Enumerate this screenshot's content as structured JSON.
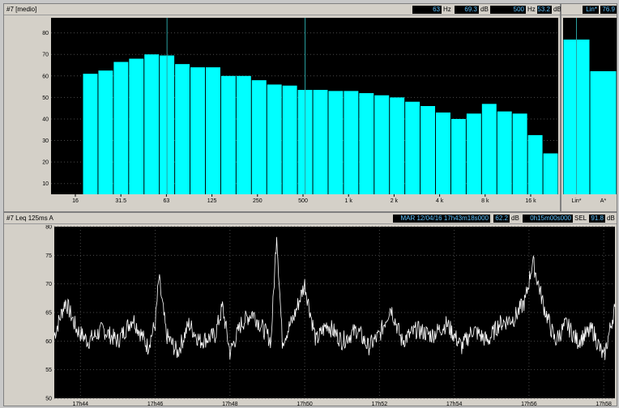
{
  "spectrum_panel": {
    "title": "#7 [medio]",
    "readouts": [
      {
        "value": "63",
        "unit": "Hz"
      },
      {
        "value": "69.3",
        "unit": "dB"
      },
      {
        "value": "500",
        "unit": "Hz"
      },
      {
        "value": "53.2",
        "unit": "dB"
      }
    ]
  },
  "global_panel": {
    "readout_label": "Lin*",
    "readout_value": "76.9"
  },
  "time_panel": {
    "title": "#7  Leq 125ms  A",
    "readouts": {
      "datetime": "MAR 12/04/16 17h43m18s000",
      "level": "62.2",
      "level_unit": "dB",
      "duration": "0h15m00s000",
      "sel_label": "SEL",
      "sel_value": "91.8",
      "sel_unit": "dB"
    }
  },
  "colors": {
    "bars": "#00ffff",
    "plot_bg": "#000000",
    "grid": "#4a4a4a",
    "cursor": "#2aa0a0",
    "trace": "#ffffff"
  },
  "chart_data": [
    {
      "type": "bar",
      "title": "",
      "xlabel": "",
      "ylabel": "",
      "ylim": [
        5,
        87
      ],
      "yticks": [
        10,
        20,
        30,
        40,
        50,
        60,
        70,
        80
      ],
      "xtick_labels": [
        "16",
        "31.5",
        "63",
        "125",
        "250",
        "500",
        "1 k",
        "2 k",
        "4 k",
        "8 k",
        "16 k"
      ],
      "bands": [
        "20",
        "25",
        "31.5",
        "40",
        "50",
        "63",
        "80",
        "100",
        "125",
        "160",
        "200",
        "250",
        "315",
        "400",
        "500",
        "630",
        "800",
        "1k",
        "1.25k",
        "1.6k",
        "2k",
        "2.5k",
        "3.15k",
        "4k",
        "5k",
        "6.3k",
        "8k",
        "10k",
        "12.5k",
        "16k",
        "20k"
      ],
      "values": [
        61,
        62.5,
        66.5,
        68,
        70,
        69.5,
        65.5,
        64,
        64,
        60,
        60,
        58,
        56,
        55.5,
        53.5,
        53.5,
        53,
        53,
        52,
        51,
        50,
        48,
        46,
        43,
        40,
        42.5,
        47,
        43.5,
        42.5,
        32.5,
        24
      ],
      "cursors": [
        "63",
        "500"
      ]
    },
    {
      "type": "bar",
      "title": "",
      "categories": [
        "Lin*",
        "A*"
      ],
      "values": [
        76.9,
        62.2
      ],
      "ylim": [
        5,
        87
      ]
    },
    {
      "type": "line",
      "title": "",
      "xlabel": "",
      "ylabel": "",
      "ylim": [
        50,
        80
      ],
      "yticks": [
        50,
        55,
        60,
        65,
        70,
        75,
        80
      ],
      "xtick_labels": [
        "17h44",
        "17h46",
        "17h48",
        "17h50",
        "17h52",
        "17h54",
        "17h56",
        "17h58"
      ],
      "xlim_minutes": [
        43.3,
        58.3
      ],
      "series": [
        {
          "keypoints_min_db": [
            [
              43.3,
              61
            ],
            [
              43.6,
              67
            ],
            [
              43.9,
              62
            ],
            [
              44.2,
              60
            ],
            [
              44.6,
              62
            ],
            [
              45.0,
              60
            ],
            [
              45.4,
              64
            ],
            [
              45.8,
              59
            ],
            [
              46.0,
              63
            ],
            [
              46.1,
              71
            ],
            [
              46.3,
              61
            ],
            [
              46.6,
              58
            ],
            [
              46.9,
              63
            ],
            [
              47.2,
              60
            ],
            [
              47.6,
              61
            ],
            [
              47.8,
              66
            ],
            [
              48.0,
              58
            ],
            [
              48.3,
              63
            ],
            [
              48.6,
              65
            ],
            [
              48.9,
              62
            ],
            [
              49.1,
              60
            ],
            [
              49.25,
              79
            ],
            [
              49.4,
              60
            ],
            [
              49.7,
              64
            ],
            [
              50.0,
              70
            ],
            [
              50.3,
              60
            ],
            [
              50.6,
              63
            ],
            [
              51.0,
              60
            ],
            [
              51.4,
              62
            ],
            [
              51.7,
              59
            ],
            [
              52.0,
              61
            ],
            [
              52.3,
              66
            ],
            [
              52.6,
              60
            ],
            [
              53.0,
              62
            ],
            [
              53.4,
              61
            ],
            [
              53.8,
              63
            ],
            [
              54.2,
              59
            ],
            [
              54.5,
              62
            ],
            [
              54.9,
              60
            ],
            [
              55.2,
              63
            ],
            [
              55.6,
              64
            ],
            [
              55.9,
              67
            ],
            [
              56.1,
              74
            ],
            [
              56.4,
              66
            ],
            [
              56.7,
              60
            ],
            [
              57.0,
              63
            ],
            [
              57.3,
              60
            ],
            [
              57.7,
              62
            ],
            [
              58.0,
              57
            ],
            [
              58.3,
              66
            ]
          ]
        }
      ]
    }
  ]
}
